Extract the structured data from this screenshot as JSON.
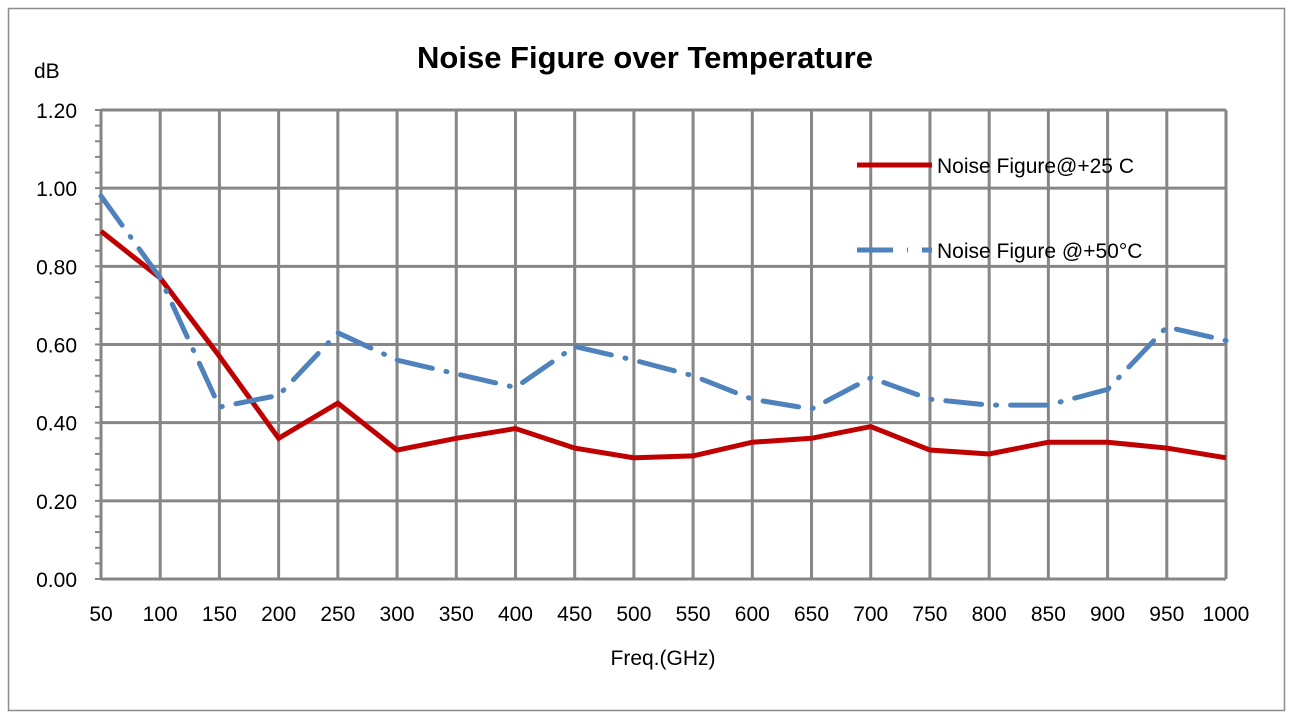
{
  "chart_data": {
    "type": "line",
    "title": "Noise Figure over Temperature",
    "xlabel": "Freq.(GHz)",
    "ylabel": "dB",
    "x": [
      50,
      100,
      150,
      200,
      250,
      300,
      350,
      400,
      450,
      500,
      550,
      600,
      650,
      700,
      750,
      800,
      850,
      900,
      950,
      1000
    ],
    "ylim": [
      0,
      1.2
    ],
    "yticks": [
      "0.00",
      "0.20",
      "0.40",
      "0.60",
      "0.80",
      "1.00",
      "1.20"
    ],
    "grid": true,
    "legend_position": "top-right",
    "series": [
      {
        "name": "Noise Figure@+25 C",
        "color": "#C00000",
        "style": "solid",
        "values": [
          0.89,
          0.77,
          0.57,
          0.36,
          0.45,
          0.33,
          0.36,
          0.385,
          0.335,
          0.31,
          0.315,
          0.35,
          0.36,
          0.39,
          0.33,
          0.32,
          0.35,
          0.35,
          0.335,
          0.31
        ]
      },
      {
        "name": "Noise Figure @+50°C",
        "color": "#4F81BD",
        "style": "dash-dot",
        "values": [
          0.98,
          0.77,
          0.44,
          0.47,
          0.63,
          0.56,
          0.525,
          0.49,
          0.595,
          0.56,
          0.52,
          0.46,
          0.435,
          0.515,
          0.46,
          0.445,
          0.445,
          0.485,
          0.645,
          0.61
        ]
      }
    ]
  }
}
